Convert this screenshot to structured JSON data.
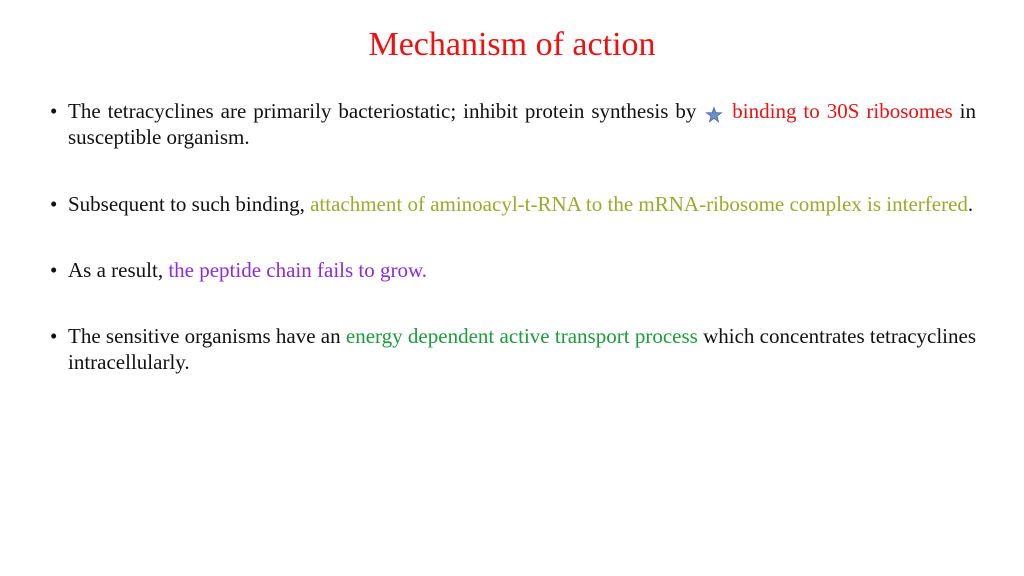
{
  "title": "Mechanism of action",
  "colors": {
    "title": "#e11",
    "red": "#e11",
    "olive": "#9aaa2c",
    "purple": "#8a2be2",
    "green": "#1a9c3a",
    "text": "#111",
    "background": "#ffffff",
    "star_fill": "#6b8fc9",
    "star_stroke": "#3a5f9e"
  },
  "typography": {
    "font_family": "Comic Sans MS",
    "title_fontsize": 34,
    "body_fontsize": 21
  },
  "bullets": [
    {
      "parts": [
        {
          "text": "The tetracyclines are primarily bacteriostatic; inhibit protein synthesis by ",
          "color": "text"
        },
        {
          "icon": "star"
        },
        {
          "text": " binding to 30S ribosomes ",
          "color": "red"
        },
        {
          "text": "in susceptible organism.",
          "color": "text"
        }
      ]
    },
    {
      "parts": [
        {
          "text": " Subsequent to such binding, ",
          "color": "text"
        },
        {
          "text": "attachment of aminoacyl-t-RNA to the mRNA-ribosome complex is interfered",
          "color": "olive"
        },
        {
          "text": ".",
          "color": "text"
        }
      ]
    },
    {
      "parts": [
        {
          "text": "As a result, ",
          "color": "text"
        },
        {
          "text": "the peptide chain fails to grow.",
          "color": "purple"
        }
      ]
    },
    {
      "parts": [
        {
          "text": "The sensitive organisms have an ",
          "color": "text"
        },
        {
          "text": "energy dependent active transport process",
          "color": "green"
        },
        {
          "text": " which concentrates tetracyclines intracellularly.",
          "color": "text"
        }
      ]
    }
  ]
}
